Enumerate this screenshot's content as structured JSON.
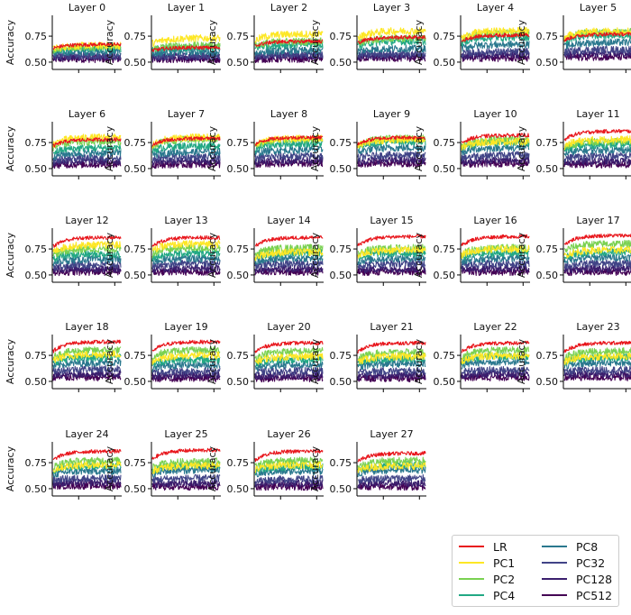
{
  "chart_data": {
    "type": "line",
    "ylabel": "Accuracy",
    "yticks": [
      0.5,
      0.75
    ],
    "ytick_labels": [
      "0.50",
      "0.75"
    ],
    "ylim": [
      0.43,
      0.95
    ],
    "grid": false,
    "legend_position": "bottom-right",
    "series": [
      {
        "name": "LR",
        "color": "#e8161c"
      },
      {
        "name": "PC1",
        "color": "#fde725"
      },
      {
        "name": "PC2",
        "color": "#7ad151"
      },
      {
        "name": "PC4",
        "color": "#22a884"
      },
      {
        "name": "PC8",
        "color": "#2a788e"
      },
      {
        "name": "PC32",
        "color": "#414487"
      },
      {
        "name": "PC128",
        "color": "#3b1f6e"
      },
      {
        "name": "PC512",
        "color": "#440154"
      }
    ],
    "panels": [
      {
        "title": "Layer 0",
        "levels": {
          "LR": 0.67,
          "PC1": 0.66,
          "PC2": 0.65,
          "PC4": 0.63,
          "PC8": 0.6,
          "PC32": 0.56,
          "PC128": 0.55,
          "PC512": 0.53
        }
      },
      {
        "title": "Layer 1",
        "levels": {
          "LR": 0.64,
          "PC1": 0.73,
          "PC2": 0.66,
          "PC4": 0.64,
          "PC8": 0.6,
          "PC32": 0.56,
          "PC128": 0.55,
          "PC512": 0.53
        }
      },
      {
        "title": "Layer 2",
        "levels": {
          "LR": 0.7,
          "PC1": 0.77,
          "PC2": 0.7,
          "PC4": 0.67,
          "PC8": 0.61,
          "PC32": 0.57,
          "PC128": 0.56,
          "PC512": 0.53
        }
      },
      {
        "title": "Layer 3",
        "levels": {
          "LR": 0.74,
          "PC1": 0.8,
          "PC2": 0.73,
          "PC4": 0.7,
          "PC8": 0.63,
          "PC32": 0.58,
          "PC128": 0.56,
          "PC512": 0.54
        }
      },
      {
        "title": "Layer 4",
        "levels": {
          "LR": 0.76,
          "PC1": 0.8,
          "PC2": 0.78,
          "PC4": 0.74,
          "PC8": 0.67,
          "PC32": 0.6,
          "PC128": 0.57,
          "PC512": 0.54
        }
      },
      {
        "title": "Layer 5",
        "levels": {
          "LR": 0.77,
          "PC1": 0.8,
          "PC2": 0.79,
          "PC4": 0.76,
          "PC8": 0.69,
          "PC32": 0.62,
          "PC128": 0.58,
          "PC512": 0.55
        }
      },
      {
        "title": "Layer 6",
        "levels": {
          "LR": 0.78,
          "PC1": 0.8,
          "PC2": 0.76,
          "PC4": 0.7,
          "PC8": 0.65,
          "PC32": 0.6,
          "PC128": 0.57,
          "PC512": 0.54
        }
      },
      {
        "title": "Layer 7",
        "levels": {
          "LR": 0.79,
          "PC1": 0.8,
          "PC2": 0.78,
          "PC4": 0.72,
          "PC8": 0.66,
          "PC32": 0.61,
          "PC128": 0.57,
          "PC512": 0.54
        }
      },
      {
        "title": "Layer 8",
        "levels": {
          "LR": 0.8,
          "PC1": 0.79,
          "PC2": 0.78,
          "PC4": 0.74,
          "PC8": 0.68,
          "PC32": 0.62,
          "PC128": 0.58,
          "PC512": 0.55
        }
      },
      {
        "title": "Layer 9",
        "levels": {
          "LR": 0.8,
          "PC1": 0.78,
          "PC2": 0.79,
          "PC4": 0.76,
          "PC8": 0.7,
          "PC32": 0.63,
          "PC128": 0.58,
          "PC512": 0.55
        }
      },
      {
        "title": "Layer 10",
        "levels": {
          "LR": 0.82,
          "PC1": 0.76,
          "PC2": 0.78,
          "PC4": 0.75,
          "PC8": 0.7,
          "PC32": 0.63,
          "PC128": 0.58,
          "PC512": 0.55
        }
      },
      {
        "title": "Layer 11",
        "levels": {
          "LR": 0.86,
          "PC1": 0.78,
          "PC2": 0.76,
          "PC4": 0.73,
          "PC8": 0.68,
          "PC32": 0.62,
          "PC128": 0.57,
          "PC512": 0.54
        }
      },
      {
        "title": "Layer 12",
        "levels": {
          "LR": 0.86,
          "PC1": 0.79,
          "PC2": 0.75,
          "PC4": 0.7,
          "PC8": 0.65,
          "PC32": 0.6,
          "PC128": 0.56,
          "PC512": 0.53
        }
      },
      {
        "title": "Layer 13",
        "levels": {
          "LR": 0.86,
          "PC1": 0.8,
          "PC2": 0.76,
          "PC4": 0.71,
          "PC8": 0.66,
          "PC32": 0.61,
          "PC128": 0.56,
          "PC512": 0.53
        }
      },
      {
        "title": "Layer 14",
        "levels": {
          "LR": 0.86,
          "PC1": 0.72,
          "PC2": 0.76,
          "PC4": 0.71,
          "PC8": 0.66,
          "PC32": 0.61,
          "PC128": 0.56,
          "PC512": 0.53
        }
      },
      {
        "title": "Layer 15",
        "levels": {
          "LR": 0.87,
          "PC1": 0.74,
          "PC2": 0.76,
          "PC4": 0.71,
          "PC8": 0.66,
          "PC32": 0.61,
          "PC128": 0.56,
          "PC512": 0.53
        }
      },
      {
        "title": "Layer 16",
        "levels": {
          "LR": 0.87,
          "PC1": 0.75,
          "PC2": 0.76,
          "PC4": 0.71,
          "PC8": 0.66,
          "PC32": 0.61,
          "PC128": 0.56,
          "PC512": 0.53
        }
      },
      {
        "title": "Layer 17",
        "levels": {
          "LR": 0.88,
          "PC1": 0.74,
          "PC2": 0.8,
          "PC4": 0.72,
          "PC8": 0.67,
          "PC32": 0.61,
          "PC128": 0.56,
          "PC512": 0.53
        }
      },
      {
        "title": "Layer 18",
        "levels": {
          "LR": 0.88,
          "PC1": 0.76,
          "PC2": 0.8,
          "PC4": 0.73,
          "PC8": 0.68,
          "PC32": 0.62,
          "PC128": 0.57,
          "PC512": 0.54
        }
      },
      {
        "title": "Layer 19",
        "levels": {
          "LR": 0.88,
          "PC1": 0.75,
          "PC2": 0.8,
          "PC4": 0.71,
          "PC8": 0.66,
          "PC32": 0.6,
          "PC128": 0.56,
          "PC512": 0.53
        }
      },
      {
        "title": "Layer 20",
        "levels": {
          "LR": 0.87,
          "PC1": 0.74,
          "PC2": 0.79,
          "PC4": 0.71,
          "PC8": 0.66,
          "PC32": 0.6,
          "PC128": 0.56,
          "PC512": 0.53
        }
      },
      {
        "title": "Layer 21",
        "levels": {
          "LR": 0.87,
          "PC1": 0.74,
          "PC2": 0.78,
          "PC4": 0.72,
          "PC8": 0.67,
          "PC32": 0.6,
          "PC128": 0.56,
          "PC512": 0.53
        }
      },
      {
        "title": "Layer 22",
        "levels": {
          "LR": 0.87,
          "PC1": 0.75,
          "PC2": 0.8,
          "PC4": 0.74,
          "PC8": 0.69,
          "PC32": 0.61,
          "PC128": 0.57,
          "PC512": 0.54
        }
      },
      {
        "title": "Layer 23",
        "levels": {
          "LR": 0.87,
          "PC1": 0.74,
          "PC2": 0.79,
          "PC4": 0.73,
          "PC8": 0.68,
          "PC32": 0.61,
          "PC128": 0.57,
          "PC512": 0.54
        }
      },
      {
        "title": "Layer 24",
        "levels": {
          "LR": 0.86,
          "PC1": 0.73,
          "PC2": 0.77,
          "PC4": 0.72,
          "PC8": 0.67,
          "PC32": 0.6,
          "PC128": 0.56,
          "PC512": 0.53
        }
      },
      {
        "title": "Layer 25",
        "levels": {
          "LR": 0.87,
          "PC1": 0.72,
          "PC2": 0.76,
          "PC4": 0.72,
          "PC8": 0.68,
          "PC32": 0.6,
          "PC128": 0.55,
          "PC512": 0.52
        }
      },
      {
        "title": "Layer 26",
        "levels": {
          "LR": 0.86,
          "PC1": 0.73,
          "PC2": 0.77,
          "PC4": 0.71,
          "PC8": 0.67,
          "PC32": 0.59,
          "PC128": 0.55,
          "PC512": 0.52
        }
      },
      {
        "title": "Layer 27",
        "levels": {
          "LR": 0.84,
          "PC1": 0.72,
          "PC2": 0.77,
          "PC4": 0.73,
          "PC8": 0.68,
          "PC32": 0.6,
          "PC128": 0.55,
          "PC512": 0.52
        }
      }
    ]
  }
}
